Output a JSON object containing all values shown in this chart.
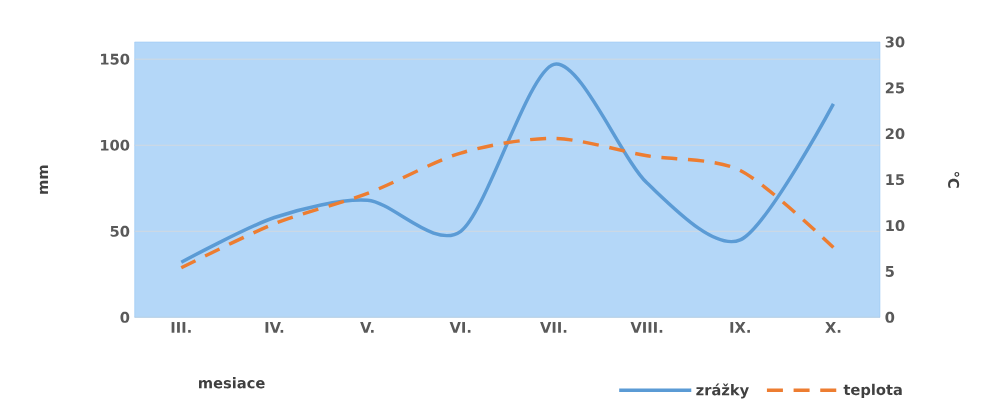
{
  "chart_data": {
    "type": "line",
    "xlabel": "mesiace",
    "ylabel": "mm",
    "y2label": "°C",
    "categories": [
      "III.",
      "IV.",
      "V.",
      "VI.",
      "VII.",
      "VIII.",
      "IX.",
      "X."
    ],
    "series": [
      {
        "name": "zrážky",
        "color": "#5b9bd5",
        "values": [
          32,
          58,
          68,
          50,
          147,
          78,
          45,
          124
        ],
        "line_style": "solid"
      },
      {
        "name": "teplota",
        "color": "#ed7d31",
        "values": [
          5.4,
          10.2,
          13.5,
          17.9,
          19.5,
          17.6,
          16,
          7.6
        ],
        "axis": "y2",
        "line_style": "dashed"
      }
    ],
    "ylim": [
      0,
      160
    ],
    "yticks": [
      0,
      50,
      100,
      150
    ],
    "y2lim": [
      0,
      30
    ],
    "y2ticks": [
      0,
      5,
      10,
      15,
      20,
      25,
      30
    ],
    "grid": "y",
    "legend": "bottom right",
    "marker": "none"
  }
}
